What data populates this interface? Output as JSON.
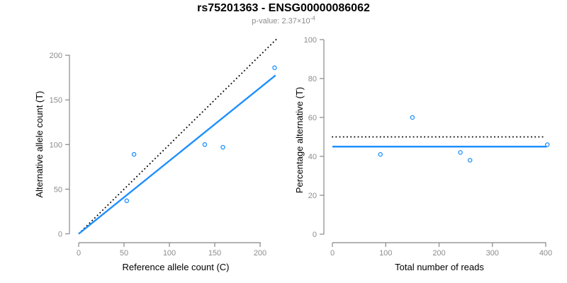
{
  "header": {
    "title": "rs75201363 - ENSG00000086062",
    "subtitle_prefix": "p-value: 2.37×10",
    "subtitle_exponent": "-4"
  },
  "colors": {
    "accent_blue": "#1E90FF",
    "dotted_black": "#000000",
    "axis_gray": "#888888",
    "tick_label_gray": "#8C8C8C",
    "point_fill": "#ffffff"
  },
  "chart_data": [
    {
      "id": "allele-counts",
      "type": "scatter",
      "xlabel": "Reference allele count (C)",
      "ylabel": "Alternative allele count (T)",
      "xlim": [
        0,
        200
      ],
      "ylim": [
        0,
        200
      ],
      "xticks": [
        0,
        50,
        100,
        150,
        200
      ],
      "yticks": [
        0,
        50,
        100,
        150,
        200
      ],
      "grid": false,
      "legend": "none",
      "point_shape": "open-circle",
      "points": [
        [
          53,
          37
        ],
        [
          61,
          89
        ],
        [
          139,
          100
        ],
        [
          159,
          97
        ],
        [
          216,
          186
        ]
      ],
      "lines": [
        {
          "name": "identity-line",
          "style": "dotted",
          "color": "#000000",
          "from": [
            0,
            0
          ],
          "to": [
            218,
            218
          ]
        },
        {
          "name": "fit-line",
          "style": "solid",
          "color": "#1E90FF",
          "from": [
            0,
            0
          ],
          "to": [
            217,
            177.5
          ]
        }
      ]
    },
    {
      "id": "percentage-alternative",
      "type": "scatter",
      "xlabel": "Total number of reads",
      "ylabel": "Percentage alternative (T)",
      "xlim": [
        0,
        400
      ],
      "ylim": [
        0,
        100
      ],
      "xticks": [
        0,
        100,
        200,
        300,
        400
      ],
      "yticks": [
        0,
        20,
        40,
        60,
        80,
        100
      ],
      "grid": false,
      "legend": "none",
      "point_shape": "open-circle",
      "points": [
        [
          90,
          41
        ],
        [
          150,
          60
        ],
        [
          240,
          42
        ],
        [
          258,
          38
        ],
        [
          403,
          46
        ]
      ],
      "lines": [
        {
          "name": "expected-line",
          "style": "dotted",
          "color": "#000000",
          "from": [
            -1,
            50
          ],
          "to": [
            397,
            50
          ]
        },
        {
          "name": "fit-line",
          "style": "solid",
          "color": "#1E90FF",
          "from": [
            0,
            45
          ],
          "to": [
            402,
            45
          ]
        }
      ]
    }
  ]
}
